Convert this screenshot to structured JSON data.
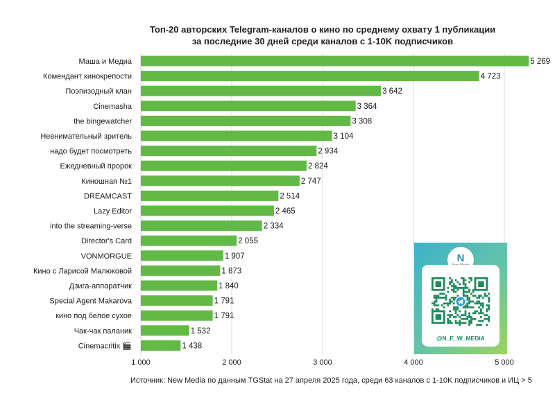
{
  "title_line1": "Топ-20 авторских Telegram-каналов о кино по среднему охвату 1 публикации",
  "title_line2": "за последние 30 дней среди каналов с 1-10K подписчиков",
  "source": "Источник: New Media по данным TGStat на 27 апреля 2025 года, среди 63 каналов с 1-10K подписчиков и ИЦ > 5",
  "colors": {
    "bar": "#63b946",
    "grid": "#dcdcdc",
    "axis": "#cfcfcf"
  },
  "promo": {
    "logo_letter": "N",
    "logo_text": "New Media",
    "handle": "@N_E_W_MEDIA",
    "icon": "telegram-icon"
  },
  "chart_data": {
    "type": "bar",
    "orientation": "horizontal",
    "title": "Топ-20 авторских Telegram-каналов о кино по среднему охвату 1 публикации за последние 30 дней среди каналов с 1-10K подписчиков",
    "categories": [
      "Маша и Медиа",
      "Комендант кинокрепости",
      "Поэпизодный клан",
      "Cinemasha",
      "the bingewatcher",
      "Невнимательный зритель",
      "надо будет посмотреть",
      "Ежедневный пророк",
      "Киношная №1",
      "DREAMCAST",
      "Lazy Editor",
      "into the streaming-verse",
      "Director's Card",
      "VONMORGUE",
      "Кино с Ларисой Малюковой",
      "Дзига-аппаратчик",
      "Special Agent Makarova",
      "кино под белое сухое",
      "Чак-чак паланик",
      "Cinemacritix 🎬"
    ],
    "values": [
      5269,
      4723,
      3642,
      3364,
      3308,
      3104,
      2934,
      2824,
      2747,
      2514,
      2465,
      2334,
      2055,
      1907,
      1873,
      1840,
      1791,
      1791,
      1532,
      1438
    ],
    "value_labels": [
      "5 269",
      "4 723",
      "3 642",
      "3 364",
      "3 308",
      "3 104",
      "2 934",
      "2 824",
      "2 747",
      "2 514",
      "2 465",
      "2 334",
      "2 055",
      "1 907",
      "1 873",
      "1 840",
      "1 791",
      "1 791",
      "1 532",
      "1 438"
    ],
    "xlim": [
      1000,
      5000
    ],
    "xticks": [
      1000,
      2000,
      3000,
      4000,
      5000
    ],
    "xtick_labels": [
      "1 000",
      "2 000",
      "3 000",
      "4 000",
      "5 000"
    ],
    "grid": true,
    "legend": "none"
  }
}
